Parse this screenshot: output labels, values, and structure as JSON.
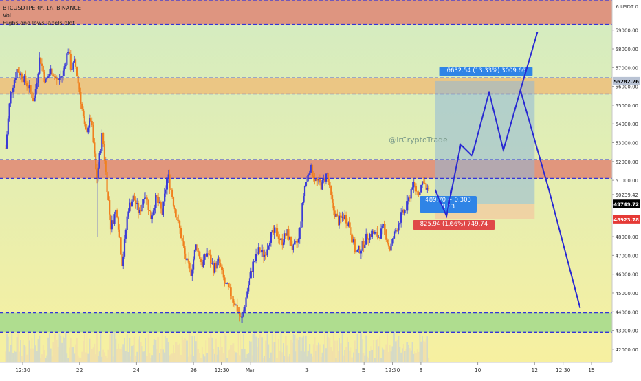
{
  "chart_data": {
    "type": "candlestick",
    "symbol_line": "BTCUSDTPERP, 1h, BINANCE",
    "indicators": [
      "Vol",
      "Highs and lows labels plot"
    ],
    "watermark": "@IrCryptoTrade",
    "currency_label": "USDT",
    "ylim": [
      41300,
      60600
    ],
    "y_ticks": [
      {
        "value": 59000,
        "label": "59000.00"
      },
      {
        "value": 58000,
        "label": "58000.00"
      },
      {
        "value": 57000,
        "label": "57000.00"
      },
      {
        "value": 56000,
        "label": "56000.00"
      },
      {
        "value": 55000,
        "label": "55000.00"
      },
      {
        "value": 54000,
        "label": "54000.00"
      },
      {
        "value": 53000,
        "label": "53000.00"
      },
      {
        "value": 52000,
        "label": "52000.00"
      },
      {
        "value": 51000,
        "label": "51000.00"
      },
      {
        "value": 50239.42,
        "label": "50239.42"
      },
      {
        "value": 48000,
        "label": "48000.00"
      },
      {
        "value": 47000,
        "label": "47000.00"
      },
      {
        "value": 46000,
        "label": "46000.00"
      },
      {
        "value": 45000,
        "label": "45000.00"
      },
      {
        "value": 44000,
        "label": "44000.00"
      },
      {
        "value": 43000,
        "label": "43000.00"
      },
      {
        "value": 42000,
        "label": "42000.00"
      }
    ],
    "price_labels": [
      {
        "value": 56282.26,
        "label": "56282.26",
        "color": "#b9c3d4",
        "text_color": "#000000"
      },
      {
        "value": 49749.72,
        "label": "49749.72",
        "color": "#000000",
        "text_color": "#ffffff"
      },
      {
        "value": 48923.78,
        "label": "48923.78",
        "color": "#e53935",
        "text_color": "#ffffff"
      }
    ],
    "x_ticks": [
      {
        "x": 0.0,
        "label": "12:30"
      },
      {
        "x": 1.0,
        "label": "22"
      },
      {
        "x": 2.0,
        "label": "24"
      },
      {
        "x": 3.0,
        "label": "26"
      },
      {
        "x": 3.5,
        "label": "12:30"
      },
      {
        "x": 4.0,
        "label": "Mar"
      },
      {
        "x": 5.0,
        "label": "3"
      },
      {
        "x": 6.0,
        "label": "5"
      },
      {
        "x": 6.5,
        "label": "12:30"
      },
      {
        "x": 7.0,
        "label": "8"
      },
      {
        "x": 8.0,
        "label": "10"
      },
      {
        "x": 9.0,
        "label": "12"
      },
      {
        "x": 9.5,
        "label": "12:30"
      },
      {
        "x": 10.0,
        "label": "15"
      }
    ],
    "xlim": [
      -0.3,
      10.8
    ],
    "zones": [
      {
        "from": 59300,
        "to": 60600,
        "type": "resistance"
      },
      {
        "from": 55600,
        "to": 56450,
        "type": "resistance_light"
      },
      {
        "from": 51100,
        "to": 52100,
        "type": "resistance"
      },
      {
        "from": 42900,
        "to": 43950,
        "type": "support"
      }
    ],
    "dashed_levels": [
      60600,
      59300,
      56450,
      55600,
      52100,
      51100,
      43950,
      42900
    ],
    "price_series": [
      [
        -0.3,
        52700
      ],
      [
        -0.22,
        55500
      ],
      [
        -0.1,
        56900
      ],
      [
        0.0,
        56500
      ],
      [
        0.1,
        56000
      ],
      [
        0.2,
        55200
      ],
      [
        0.3,
        57600
      ],
      [
        0.4,
        56200
      ],
      [
        0.5,
        56900
      ],
      [
        0.6,
        56300
      ],
      [
        0.7,
        56600
      ],
      [
        0.8,
        58000
      ],
      [
        0.85,
        56900
      ],
      [
        0.92,
        57300
      ],
      [
        1.0,
        55700
      ],
      [
        1.1,
        53500
      ],
      [
        1.2,
        54300
      ],
      [
        1.3,
        51000
      ],
      [
        1.4,
        53500
      ],
      [
        1.5,
        50000
      ],
      [
        1.55,
        48500
      ],
      [
        1.65,
        49500
      ],
      [
        1.75,
        46500
      ],
      [
        1.85,
        49500
      ],
      [
        1.95,
        50100
      ],
      [
        2.05,
        49200
      ],
      [
        2.15,
        50400
      ],
      [
        2.25,
        49000
      ],
      [
        2.35,
        50100
      ],
      [
        2.45,
        49200
      ],
      [
        2.55,
        51300
      ],
      [
        2.65,
        49800
      ],
      [
        2.75,
        48500
      ],
      [
        2.85,
        47000
      ],
      [
        2.95,
        46000
      ],
      [
        3.05,
        47600
      ],
      [
        3.15,
        46500
      ],
      [
        3.25,
        47200
      ],
      [
        3.35,
        46300
      ],
      [
        3.45,
        46700
      ],
      [
        3.55,
        45500
      ],
      [
        3.65,
        45000
      ],
      [
        3.75,
        44300
      ],
      [
        3.85,
        43500
      ],
      [
        3.95,
        45200
      ],
      [
        4.05,
        46500
      ],
      [
        4.15,
        47300
      ],
      [
        4.25,
        47000
      ],
      [
        4.35,
        48000
      ],
      [
        4.45,
        48300
      ],
      [
        4.55,
        47700
      ],
      [
        4.65,
        48200
      ],
      [
        4.75,
        47300
      ],
      [
        4.85,
        47800
      ],
      [
        4.95,
        50600
      ],
      [
        5.05,
        51700
      ],
      [
        5.15,
        51000
      ],
      [
        5.25,
        50700
      ],
      [
        5.35,
        51400
      ],
      [
        5.45,
        49500
      ],
      [
        5.55,
        48800
      ],
      [
        5.65,
        49100
      ],
      [
        5.75,
        48600
      ],
      [
        5.85,
        47100
      ],
      [
        5.95,
        47400
      ],
      [
        6.05,
        48000
      ],
      [
        6.15,
        48200
      ],
      [
        6.25,
        48000
      ],
      [
        6.35,
        48500
      ],
      [
        6.45,
        47300
      ],
      [
        6.55,
        48200
      ],
      [
        6.65,
        49100
      ],
      [
        6.75,
        49500
      ],
      [
        6.85,
        50800
      ],
      [
        6.95,
        50300
      ],
      [
        7.05,
        51100
      ],
      [
        7.1,
        50300
      ],
      [
        7.15,
        50700
      ]
    ],
    "forecast_path": [
      [
        7.25,
        50500
      ],
      [
        7.45,
        49100
      ],
      [
        7.7,
        52900
      ],
      [
        7.9,
        52300
      ],
      [
        8.2,
        55700
      ],
      [
        8.45,
        52600
      ],
      [
        8.75,
        55800
      ],
      [
        9.05,
        58900
      ]
    ],
    "forecast_path_2": [
      [
        8.75,
        55800
      ],
      [
        9.25,
        50500
      ],
      [
        9.8,
        44200
      ]
    ],
    "measure_tools": [
      {
        "label": "6632.54 (13.33%) 3009.66",
        "price": 56282.26
      },
      {
        "label": "489.70 ~ 0.303\n8.03",
        "price": 49749.72
      },
      {
        "label": "825.94 (1.66%) 749.74",
        "price": 48923.78
      }
    ],
    "colors": {
      "up": "#3b3bd6",
      "down": "#f0801e",
      "resistance": "#e0806f",
      "resistance_light": "#f0b872",
      "support": "#9ed88a",
      "bg_top": "#d3ecc2",
      "bg_bottom": "#f7f0a0",
      "dash_line": "#3434d8",
      "forecast": "#2828d2",
      "measure_box": "#8fb8d9",
      "label_blue": "#2f84e6",
      "label_red": "#e04848"
    }
  }
}
